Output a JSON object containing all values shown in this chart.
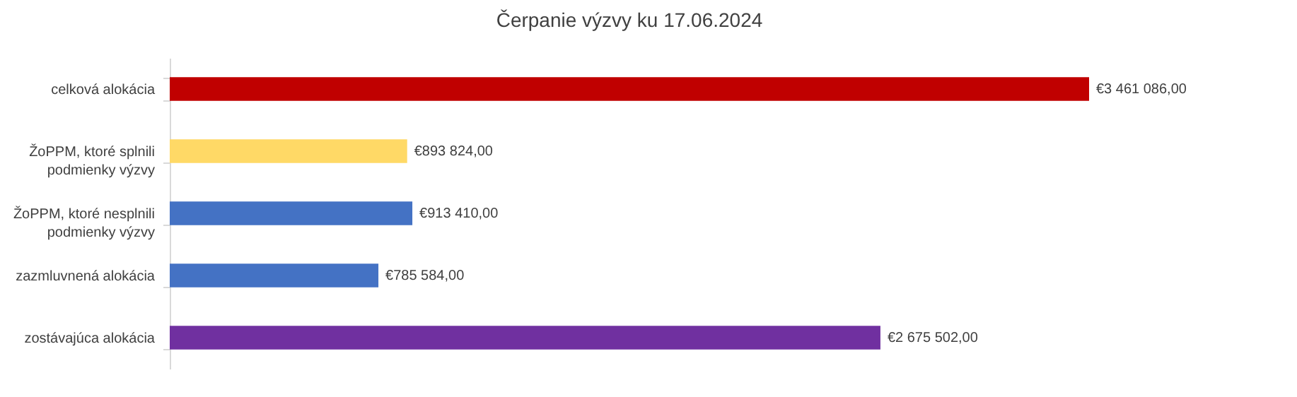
{
  "chart_data": {
    "type": "bar",
    "orientation": "horizontal",
    "title": "Čerpanie výzvy ku 17.06.2024",
    "categories": [
      "celková alokácia",
      "ŽoPPM, ktoré splnili podmienky výzvy",
      "ŽoPPM, ktoré nesplnili podmienky výzvy",
      "zazmluvnená alokácia",
      "zostávajúca alokácia"
    ],
    "values": [
      3461086,
      893824,
      913410,
      785584,
      2675502
    ],
    "colors": [
      "#c00000",
      "#ffd966",
      "#4472c4",
      "#4472c4",
      "#7030a0"
    ],
    "value_labels": [
      "€3 461 086,00",
      "€893 824,00",
      "€913 410,00",
      "€785 584,00",
      "€2 675 502,00"
    ],
    "tick_labels": "y"
  }
}
